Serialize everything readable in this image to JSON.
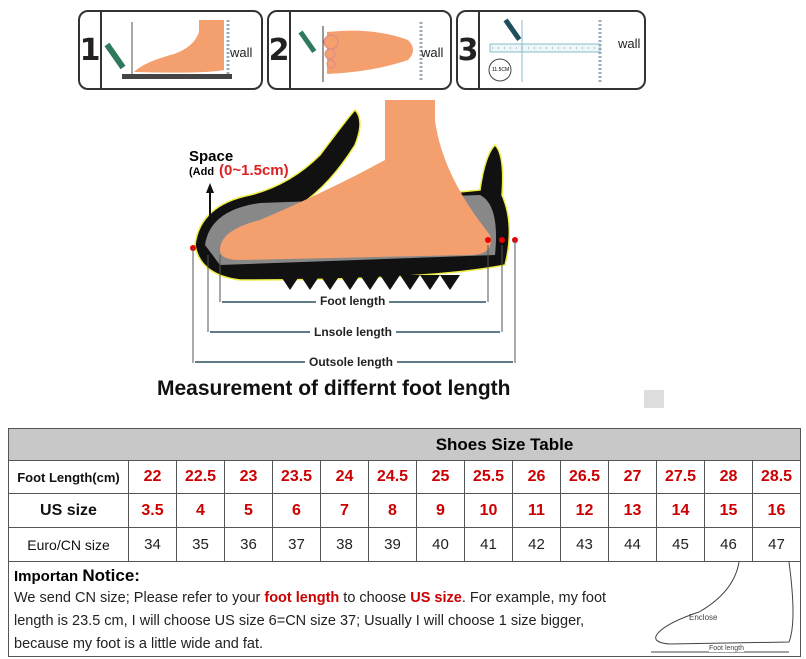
{
  "steps": [
    {
      "number": "1",
      "wall": "wall"
    },
    {
      "number": "2",
      "wall": "wall"
    },
    {
      "number": "3",
      "wall": "wall",
      "ruler_badge": "11.5CM"
    }
  ],
  "diagram": {
    "space_label": "Space",
    "add_prefix": "(Add",
    "add_value": "(0~1.5cm)",
    "foot_length": "Foot length",
    "insole_length": "Lnsole length",
    "outsole_length": "Outsole length",
    "caption": "Measurement of differnt foot length"
  },
  "table": {
    "title": "Shoes Size Table",
    "rows": [
      {
        "header": "Foot Length(cm)",
        "values": [
          "22",
          "22.5",
          "23",
          "23.5",
          "24",
          "24.5",
          "25",
          "25.5",
          "26",
          "26.5",
          "27",
          "27.5",
          "28",
          "28.5"
        ]
      },
      {
        "header": "US size",
        "values": [
          "3.5",
          "4",
          "5",
          "6",
          "7",
          "8",
          "9",
          "10",
          "11",
          "12",
          "13",
          "14",
          "15",
          "16"
        ]
      },
      {
        "header": "Euro/CN size",
        "values": [
          "34",
          "35",
          "36",
          "37",
          "38",
          "39",
          "40",
          "41",
          "42",
          "43",
          "44",
          "45",
          "46",
          "47"
        ]
      }
    ]
  },
  "notice": {
    "title_a": "Importan",
    "title_b": "Notice:",
    "p1": "We send CN size; Please refer to your ",
    "hl1": "foot length",
    "p2": " to choose ",
    "hl2": "US size",
    "p3": ". For example, my foot length is 23.5 cm, I will choose US size 6=CN size 37; Usually I will choose 1 size bigger, because my foot is a little wide and fat.",
    "sketch_enclose": "Enclose",
    "sketch_foot_length": "Foot length"
  },
  "colors": {
    "accent_red": "#cc0000",
    "skin": "#f4a06e",
    "header_gray": "#c8c8c8"
  }
}
